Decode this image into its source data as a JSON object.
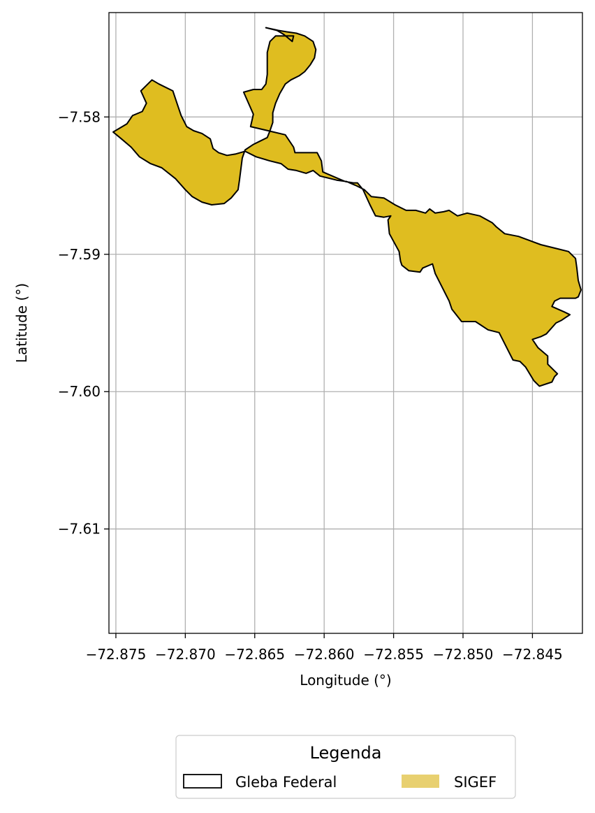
{
  "colors": {
    "polygon_fill": "#dfbd20",
    "polygon_edge": "#000000",
    "grid": "#b0b0b0",
    "sigef_legend": "#e8d070"
  },
  "chart_data": {
    "type": "map",
    "xlabel": "Longitude (°)",
    "ylabel": "Latitude (°)",
    "xlim": [
      -72.8755,
      -72.8414
    ],
    "ylim": [
      -7.6176,
      -7.5724
    ],
    "grid": true,
    "x_ticks": [
      -72.875,
      -72.87,
      -72.865,
      -72.86,
      -72.855,
      -72.85,
      -72.845
    ],
    "x_tick_labels": [
      "−72.875",
      "−72.870",
      "−72.865",
      "−72.860",
      "−72.855",
      "−72.850",
      "−72.845"
    ],
    "y_ticks": [
      -7.58,
      -7.59,
      -7.6,
      -7.61
    ],
    "y_tick_labels": [
      "−7.58",
      "−7.59",
      "−7.60",
      "−7.61"
    ],
    "legend": {
      "title": "Legenda",
      "placement": "bottom-center",
      "entries": [
        {
          "label": "Gleba Federal",
          "style": "outline"
        },
        {
          "label": "SIGEF",
          "style": "filled"
        }
      ]
    },
    "polygon": [
      [
        -72.8642,
        -7.5735
      ],
      [
        -72.8634,
        -7.5737
      ],
      [
        -72.8629,
        -7.574
      ],
      [
        -72.8623,
        -7.5745
      ],
      [
        -72.8622,
        -7.5741
      ],
      [
        -72.8626,
        -7.5741
      ],
      [
        -72.8635,
        -7.5741
      ],
      [
        -72.8639,
        -7.5745
      ],
      [
        -72.8641,
        -7.5753
      ],
      [
        -72.8641,
        -7.5769
      ],
      [
        -72.8642,
        -7.5776
      ],
      [
        -72.8645,
        -7.578
      ],
      [
        -72.8651,
        -7.578
      ],
      [
        -72.8658,
        -7.5782
      ],
      [
        -72.8651,
        -7.5798
      ],
      [
        -72.8653,
        -7.5807
      ],
      [
        -72.8628,
        -7.5813
      ],
      [
        -72.8622,
        -7.5822
      ],
      [
        -72.8621,
        -7.5826
      ],
      [
        -72.8605,
        -7.5826
      ],
      [
        -72.8602,
        -7.5832
      ],
      [
        -72.8601,
        -7.584
      ],
      [
        -72.8585,
        -7.5847
      ],
      [
        -72.8579,
        -7.5848
      ],
      [
        -72.8576,
        -7.5848
      ],
      [
        -72.8572,
        -7.5853
      ],
      [
        -72.8567,
        -7.5864
      ],
      [
        -72.8563,
        -7.5872
      ],
      [
        -72.8557,
        -7.5873
      ],
      [
        -72.8552,
        -7.5872
      ],
      [
        -72.8554,
        -7.5875
      ],
      [
        -72.8553,
        -7.5885
      ],
      [
        -72.8546,
        -7.5898
      ],
      [
        -72.8545,
        -7.5905
      ],
      [
        -72.8544,
        -7.5908
      ],
      [
        -72.8539,
        -7.5912
      ],
      [
        -72.8531,
        -7.5913
      ],
      [
        -72.8529,
        -7.591
      ],
      [
        -72.8522,
        -7.5907
      ],
      [
        -72.852,
        -7.5914
      ],
      [
        -72.851,
        -7.5934
      ],
      [
        -72.8508,
        -7.594
      ],
      [
        -72.8501,
        -7.5949
      ],
      [
        -72.8491,
        -7.5949
      ],
      [
        -72.8482,
        -7.5955
      ],
      [
        -72.8474,
        -7.5957
      ],
      [
        -72.8467,
        -7.5971
      ],
      [
        -72.8464,
        -7.5977
      ],
      [
        -72.8459,
        -7.5978
      ],
      [
        -72.8455,
        -7.5982
      ],
      [
        -72.8449,
        -7.5992
      ],
      [
        -72.8445,
        -7.5996
      ],
      [
        -72.8436,
        -7.5993
      ],
      [
        -72.8434,
        -7.5989
      ],
      [
        -72.8432,
        -7.5987
      ],
      [
        -72.8439,
        -7.598
      ],
      [
        -72.8439,
        -7.5974
      ],
      [
        -72.8446,
        -7.5968
      ],
      [
        -72.845,
        -7.5962
      ],
      [
        -72.8444,
        -7.596
      ],
      [
        -72.844,
        -7.5958
      ],
      [
        -72.8433,
        -7.595
      ],
      [
        -72.8429,
        -7.5948
      ],
      [
        -72.8426,
        -7.5946
      ],
      [
        -72.8423,
        -7.5944
      ],
      [
        -72.8427,
        -7.5942
      ],
      [
        -72.8436,
        -7.5938
      ],
      [
        -72.8434,
        -7.5934
      ],
      [
        -72.843,
        -7.5932
      ],
      [
        -72.8419,
        -7.5932
      ],
      [
        -72.8417,
        -7.5931
      ],
      [
        -72.8415,
        -7.5926
      ],
      [
        -72.8417,
        -7.5919
      ],
      [
        -72.8418,
        -7.591
      ],
      [
        -72.8419,
        -7.5903
      ],
      [
        -72.8424,
        -7.5898
      ],
      [
        -72.8432,
        -7.5896
      ],
      [
        -72.8444,
        -7.5893
      ],
      [
        -72.8452,
        -7.589
      ],
      [
        -72.846,
        -7.5887
      ],
      [
        -72.847,
        -7.5885
      ],
      [
        -72.8476,
        -7.588
      ],
      [
        -72.8479,
        -7.5877
      ],
      [
        -72.8488,
        -7.5872
      ],
      [
        -72.8497,
        -7.587
      ],
      [
        -72.8504,
        -7.5872
      ],
      [
        -72.851,
        -7.5868
      ],
      [
        -72.8514,
        -7.5869
      ],
      [
        -72.852,
        -7.587
      ],
      [
        -72.8524,
        -7.5867
      ],
      [
        -72.8527,
        -7.587
      ],
      [
        -72.8534,
        -7.5868
      ],
      [
        -72.8541,
        -7.5868
      ],
      [
        -72.8549,
        -7.5864
      ],
      [
        -72.8557,
        -7.5859
      ],
      [
        -72.8566,
        -7.5858
      ],
      [
        -72.8571,
        -7.5853
      ],
      [
        -72.8577,
        -7.585
      ],
      [
        -72.8584,
        -7.5847
      ],
      [
        -72.8591,
        -7.5846
      ],
      [
        -72.8603,
        -7.5843
      ],
      [
        -72.8608,
        -7.5839
      ],
      [
        -72.8613,
        -7.5841
      ],
      [
        -72.862,
        -7.5839
      ],
      [
        -72.8626,
        -7.5838
      ],
      [
        -72.8631,
        -7.5834
      ],
      [
        -72.8639,
        -7.5832
      ],
      [
        -72.8649,
        -7.5829
      ],
      [
        -72.8657,
        -7.5825
      ],
      [
        -72.8664,
        -7.5827
      ],
      [
        -72.867,
        -7.5828
      ],
      [
        -72.8676,
        -7.5826
      ],
      [
        -72.868,
        -7.5823
      ],
      [
        -72.8682,
        -7.5816
      ],
      [
        -72.8688,
        -7.5812
      ],
      [
        -72.8694,
        -7.581
      ],
      [
        -72.8699,
        -7.5807
      ],
      [
        -72.8703,
        -7.5799
      ],
      [
        -72.8705,
        -7.5793
      ],
      [
        -72.8709,
        -7.5781
      ],
      [
        -72.8719,
        -7.5776
      ],
      [
        -72.8724,
        -7.5773
      ],
      [
        -72.873,
        -7.5779
      ],
      [
        -72.8732,
        -7.5781
      ],
      [
        -72.8728,
        -7.579
      ],
      [
        -72.8731,
        -7.5796
      ],
      [
        -72.8738,
        -7.5799
      ],
      [
        -72.8742,
        -7.5805
      ],
      [
        -72.8752,
        -7.5811
      ],
      [
        -72.8746,
        -7.5816
      ],
      [
        -72.8739,
        -7.5822
      ],
      [
        -72.8733,
        -7.5829
      ],
      [
        -72.8725,
        -7.5834
      ],
      [
        -72.8717,
        -7.5837
      ],
      [
        -72.8707,
        -7.5845
      ],
      [
        -72.87,
        -7.5853
      ],
      [
        -72.8695,
        -7.5858
      ],
      [
        -72.8688,
        -7.5862
      ],
      [
        -72.8681,
        -7.5864
      ],
      [
        -72.8672,
        -7.5863
      ],
      [
        -72.8667,
        -7.5859
      ],
      [
        -72.8662,
        -7.5853
      ],
      [
        -72.8661,
        -7.5846
      ],
      [
        -72.866,
        -7.5838
      ],
      [
        -72.8659,
        -7.583
      ],
      [
        -72.8657,
        -7.5824
      ],
      [
        -72.8651,
        -7.582
      ],
      [
        -72.8647,
        -7.5818
      ],
      [
        -72.8641,
        -7.5815
      ],
      [
        -72.8639,
        -7.581
      ],
      [
        -72.8637,
        -7.5804
      ],
      [
        -72.8637,
        -7.5797
      ],
      [
        -72.8635,
        -7.579
      ],
      [
        -72.8632,
        -7.5783
      ],
      [
        -72.8628,
        -7.5776
      ],
      [
        -72.8624,
        -7.5773
      ],
      [
        -72.8618,
        -7.577
      ],
      [
        -72.8614,
        -7.5767
      ],
      [
        -72.861,
        -7.5762
      ],
      [
        -72.8607,
        -7.5757
      ],
      [
        -72.8606,
        -7.5751
      ],
      [
        -72.8608,
        -7.5745
      ],
      [
        -72.8614,
        -7.5741
      ],
      [
        -72.862,
        -7.5739
      ],
      [
        -72.8627,
        -7.5738
      ],
      [
        -72.8633,
        -7.5737
      ],
      [
        -72.8642,
        -7.5735
      ]
    ]
  },
  "layout_hint_excluded": true
}
